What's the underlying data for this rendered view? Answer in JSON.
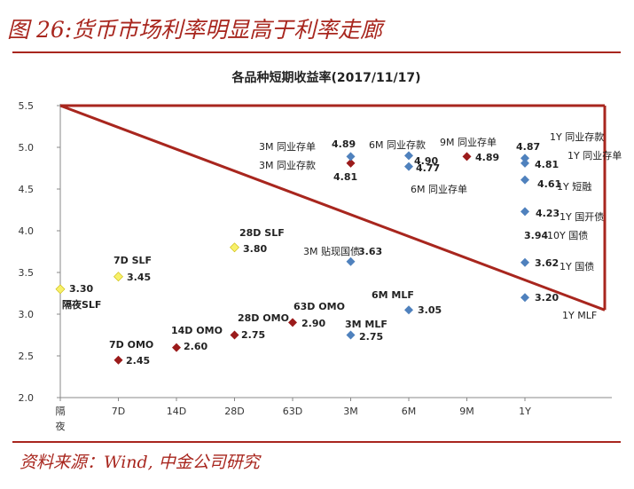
{
  "figure_title": "图 26:货币市场利率明显高于利率走廊",
  "source": "资料来源：Wind, 中金公司研究",
  "colors": {
    "blue": "#4f81bd",
    "red": "#9b1b1b",
    "yellow": "#f7f06a",
    "accent": "#a8261e"
  },
  "chart_data": {
    "type": "scatter",
    "title": "各品种短期收益率(2017/11/17)",
    "categories": [
      "隔夜",
      "7D",
      "14D",
      "28D",
      "63D",
      "3M",
      "6M",
      "9M",
      "1Y"
    ],
    "xlabels": [
      "隔\n夜",
      "7D",
      "14D",
      "28D",
      "63D",
      "3M",
      "6M",
      "9M",
      "1Y"
    ],
    "ylim": [
      2.0,
      5.5
    ],
    "yticks": [
      "2.0",
      "2.5",
      "3.0",
      "3.5",
      "4.0",
      "4.5",
      "5.0",
      "5.5"
    ],
    "corridor": {
      "upper": 5.5,
      "lower_start": 5.5,
      "lower_end": 3.05
    },
    "series": [
      {
        "name": "SLF",
        "color": "yellow",
        "points": [
          {
            "x": "隔夜",
            "y": 3.3,
            "value": "3.30",
            "label": "隔夜SLF"
          },
          {
            "x": "7D",
            "y": 3.45,
            "value": "3.45",
            "label": "7D SLF"
          },
          {
            "x": "28D",
            "y": 3.8,
            "value": "3.80",
            "label": "28D SLF"
          }
        ]
      },
      {
        "name": "OMO",
        "color": "red",
        "points": [
          {
            "x": "7D",
            "y": 2.45,
            "value": "2.45",
            "label": "7D OMO"
          },
          {
            "x": "14D",
            "y": 2.6,
            "value": "2.60",
            "label": "14D OMO"
          },
          {
            "x": "28D",
            "y": 2.75,
            "value": "2.75",
            "label": "28D OMO"
          },
          {
            "x": "63D",
            "y": 2.9,
            "value": "2.90",
            "label": "63D OMO"
          }
        ]
      },
      {
        "name": "同业存款",
        "color": "red",
        "points": [
          {
            "x": "3M",
            "y": 4.81,
            "value": "4.81",
            "label": "3M 同业存款"
          },
          {
            "x": "9M",
            "y": 4.89,
            "value": "4.89",
            "label": "9M 同业存单"
          }
        ]
      },
      {
        "name": "市场利率",
        "color": "blue",
        "points": [
          {
            "x": "3M",
            "y": 4.89,
            "value": "4.89",
            "label": "3M 同业存单"
          },
          {
            "x": "3M",
            "y": 3.63,
            "value": "3.63",
            "label": "3M 贴现国债"
          },
          {
            "x": "3M",
            "y": 2.75,
            "value": "2.75",
            "label": "3M MLF"
          },
          {
            "x": "6M",
            "y": 4.9,
            "value": "4.90",
            "label": "6M 同业存款"
          },
          {
            "x": "6M",
            "y": 4.77,
            "value": "4.77",
            "label": "6M 同业存单"
          },
          {
            "x": "6M",
            "y": 3.05,
            "value": "3.05",
            "label": "6M MLF"
          },
          {
            "x": "1Y",
            "y": 4.87,
            "value": "4.87",
            "label": "1Y 同业存款"
          },
          {
            "x": "1Y",
            "y": 4.81,
            "value": "4.81",
            "label": "1Y 同业存单"
          },
          {
            "x": "1Y",
            "y": 4.61,
            "value": "4.61",
            "label": "1Y 短融"
          },
          {
            "x": "1Y",
            "y": 4.23,
            "value": "4.23",
            "label": "1Y 国开债"
          },
          {
            "x": "1Y",
            "y": 3.62,
            "value": "3.62",
            "label": "1Y 国债"
          },
          {
            "x": "1Y",
            "y": 3.2,
            "value": "3.20",
            "label": "1Y MLF"
          }
        ]
      }
    ],
    "extra_labels": [
      {
        "x": "1Y",
        "y": 3.94,
        "value": "3.94",
        "label": "10Y 国债"
      }
    ]
  }
}
